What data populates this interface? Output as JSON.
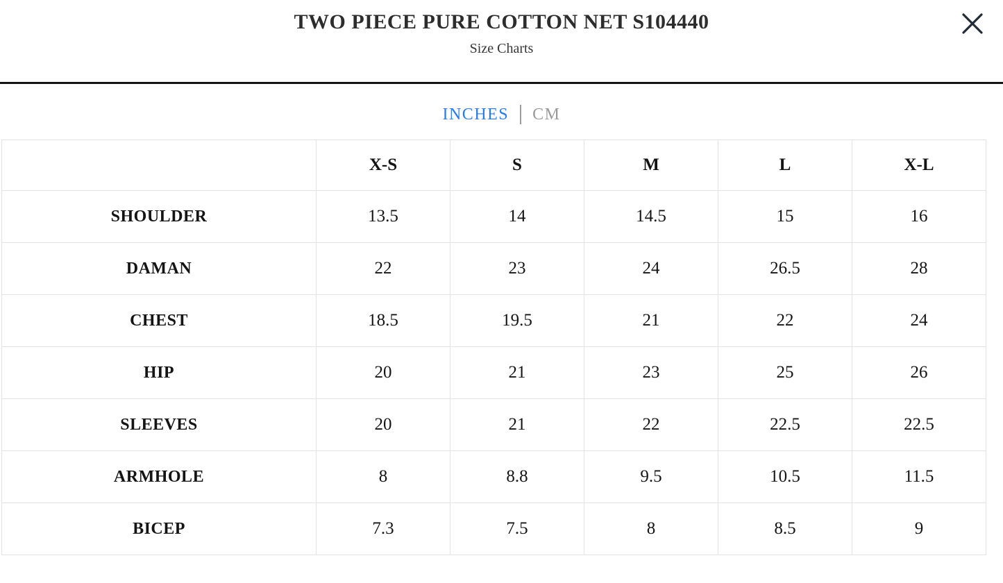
{
  "header": {
    "title": "TWO PIECE PURE COTTON NET S104440",
    "subtitle": "Size Charts"
  },
  "tabs": {
    "items": [
      {
        "label": "INCHES",
        "active": true
      },
      {
        "label": "CM",
        "active": false
      }
    ],
    "separator": "|"
  },
  "icons": {
    "close": "close-icon"
  },
  "colors": {
    "accent_blue": "#2979f0",
    "inactive_gray": "#9a9a9a",
    "divider_black": "#141414",
    "table_border": "#e3e3e3",
    "text_dark": "#141414",
    "close_icon": "#222b38"
  },
  "chart_data": {
    "type": "table",
    "title": "Size Charts",
    "unit": "INCHES",
    "columns": [
      "",
      "X-S",
      "S",
      "M",
      "L",
      "X-L"
    ],
    "rows": [
      {
        "label": "SHOULDER",
        "values": [
          "13.5",
          "14",
          "14.5",
          "15",
          "16"
        ]
      },
      {
        "label": "DAMAN",
        "values": [
          "22",
          "23",
          "24",
          "26.5",
          "28"
        ]
      },
      {
        "label": "CHEST",
        "values": [
          "18.5",
          "19.5",
          "21",
          "22",
          "24"
        ]
      },
      {
        "label": "HIP",
        "values": [
          "20",
          "21",
          "23",
          "25",
          "26"
        ]
      },
      {
        "label": "SLEEVES",
        "values": [
          "20",
          "21",
          "22",
          "22.5",
          "22.5"
        ]
      },
      {
        "label": "ARMHOLE",
        "values": [
          "8",
          "8.8",
          "9.5",
          "10.5",
          "11.5"
        ]
      },
      {
        "label": "BICEP",
        "values": [
          "7.3",
          "7.5",
          "8",
          "8.5",
          "9"
        ]
      }
    ]
  }
}
